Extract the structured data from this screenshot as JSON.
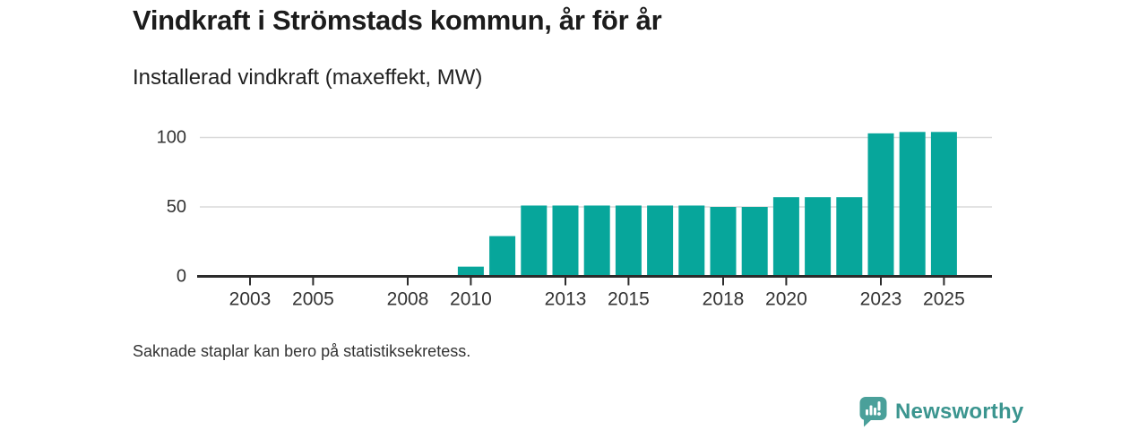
{
  "header": {
    "title": "Vindkraft i Strömstads kommun, år för år",
    "subtitle": "Installerad vindkraft (maxeffekt, MW)"
  },
  "footnote": "Saknade staplar kan bero på statistiksekretess.",
  "branding": {
    "label": "Newsworthy",
    "icon": "newsworthy-bar-chart-speech-bubble-icon"
  },
  "colors": {
    "bar": "#07a69b",
    "axis": "#2b2b2b",
    "grid": "#dadada",
    "tick_text": "#333333",
    "title_text": "#1c1c1c",
    "brand_icon": "#4aa09a",
    "brand_text": "#3b958f"
  },
  "chart_data": {
    "type": "bar",
    "title": "Vindkraft i Strömstads kommun, år för år",
    "ylabel": "Installerad vindkraft (maxeffekt, MW)",
    "unit": "MW",
    "x": [
      2002,
      2003,
      2004,
      2005,
      2006,
      2007,
      2008,
      2009,
      2010,
      2011,
      2012,
      2013,
      2014,
      2015,
      2016,
      2017,
      2018,
      2019,
      2020,
      2021,
      2022,
      2023,
      2024,
      2025
    ],
    "values": [
      null,
      null,
      null,
      null,
      null,
      null,
      null,
      null,
      7,
      29,
      51,
      51,
      51,
      51,
      51,
      51,
      50,
      50,
      57,
      57,
      57,
      103,
      104,
      104
    ],
    "xticks": [
      2003,
      2005,
      2008,
      2010,
      2013,
      2015,
      2018,
      2020,
      2023,
      2025
    ],
    "yticks": [
      0,
      50,
      100
    ],
    "ylim": [
      0,
      107
    ],
    "grid": "horizontal",
    "legend": "none",
    "bar_color": "#07a69b",
    "note": "Saknade staplar kan bero på statistiksekretess."
  }
}
